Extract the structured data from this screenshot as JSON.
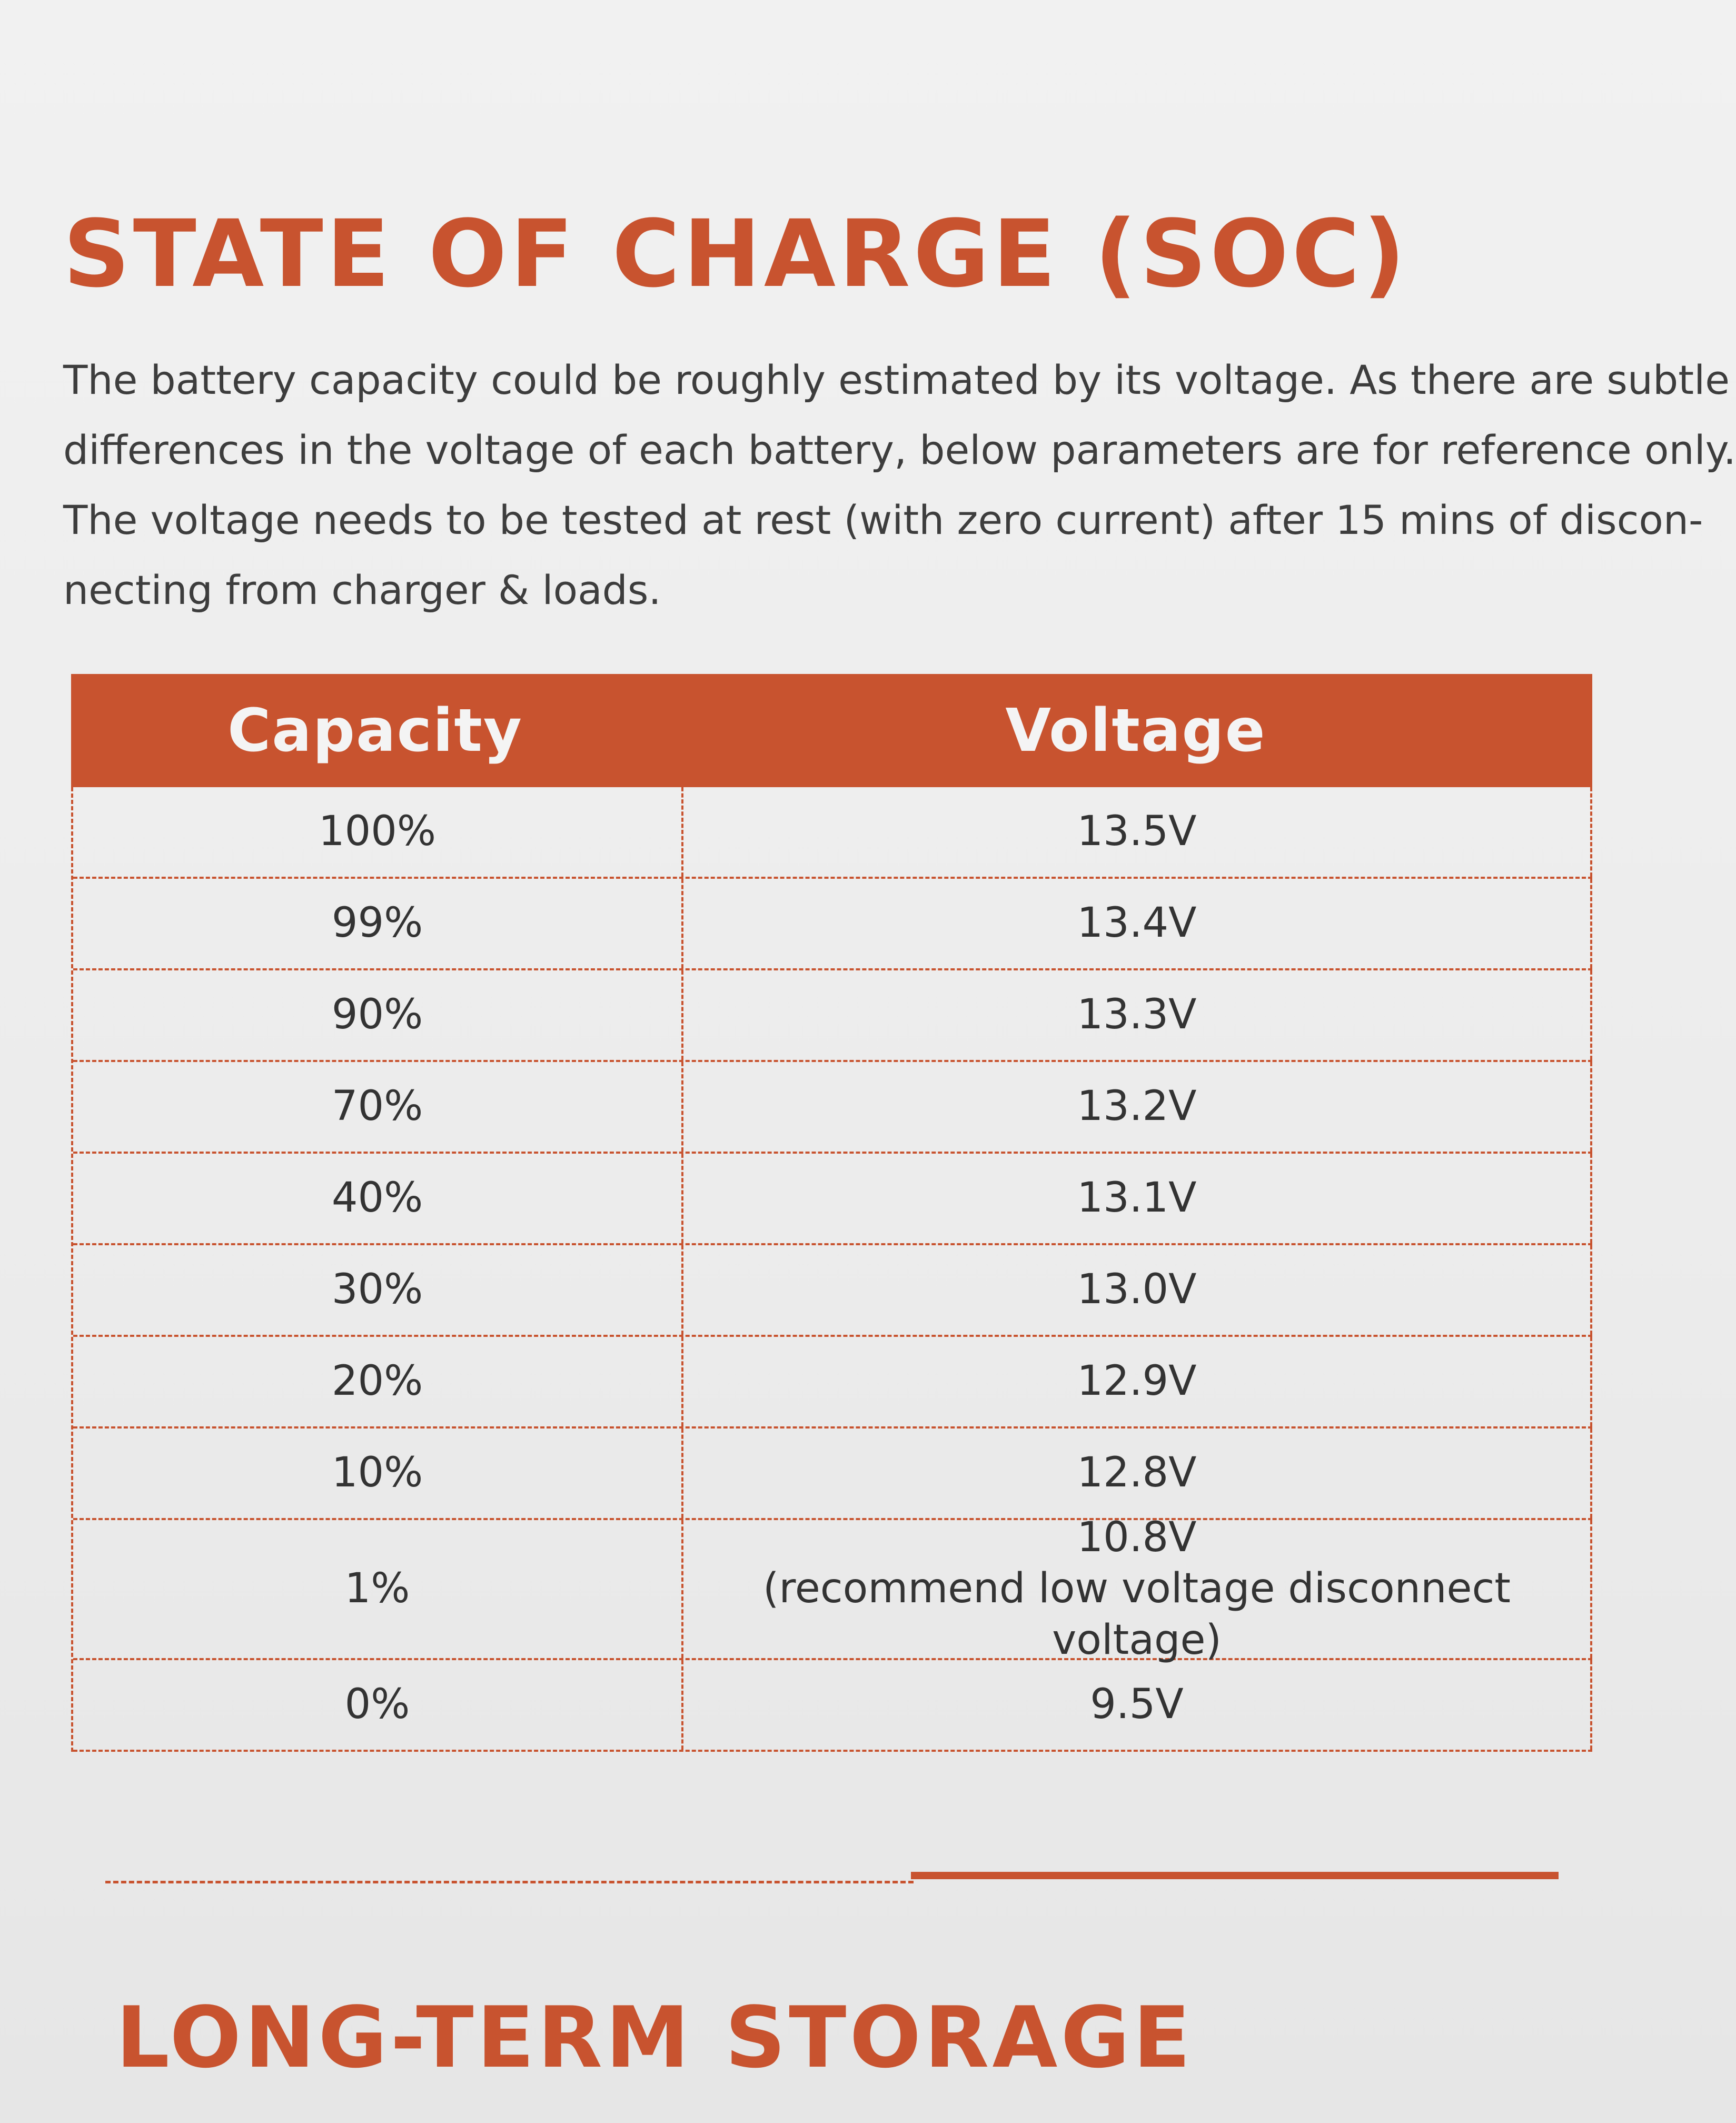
{
  "title": "STATE OF CHARGE (SOC)",
  "intro_lines": [
    "The battery capacity could be roughly estimated by its voltage. As there are subtle",
    "differences in the voltage of each battery, below parameters are for reference only.",
    "The voltage needs to be tested at rest (with zero current) after 15 mins of discon-",
    "necting from charger & loads."
  ],
  "table": {
    "headers": [
      "Capacity",
      "Voltage"
    ],
    "rows": [
      {
        "capacity": "100%",
        "voltage": "13.5V",
        "note": ""
      },
      {
        "capacity": "99%",
        "voltage": "13.4V",
        "note": ""
      },
      {
        "capacity": "90%",
        "voltage": "13.3V",
        "note": ""
      },
      {
        "capacity": "70%",
        "voltage": "13.2V",
        "note": ""
      },
      {
        "capacity": "40%",
        "voltage": "13.1V",
        "note": ""
      },
      {
        "capacity": "30%",
        "voltage": "13.0V",
        "note": ""
      },
      {
        "capacity": "20%",
        "voltage": "12.9V",
        "note": ""
      },
      {
        "capacity": "10%",
        "voltage": "12.8V",
        "note": ""
      },
      {
        "capacity": "1%",
        "voltage": "10.8V",
        "note": "(recommend low voltage disconnect voltage)"
      },
      {
        "capacity": "0%",
        "voltage": "9.5V",
        "note": ""
      }
    ]
  },
  "next_section_title": "LONG-TERM STORAGE",
  "colors": {
    "accent": "#c8532f",
    "text": "#3a3a3a",
    "paper": "#efefef"
  }
}
